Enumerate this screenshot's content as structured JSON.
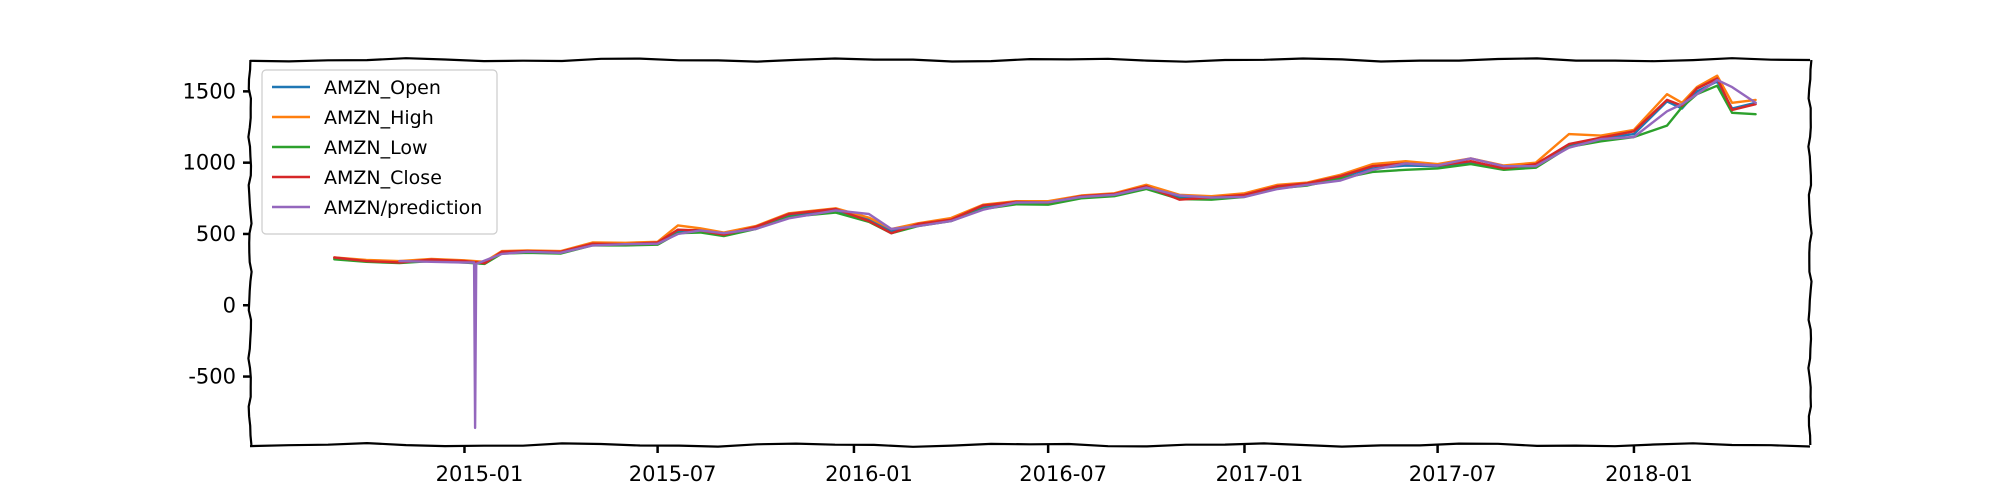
{
  "chart_data": {
    "type": "line",
    "title": "",
    "xlabel": "",
    "ylabel": "",
    "x_ticks": [
      "2015-01",
      "2015-07",
      "2016-01",
      "2016-07",
      "2017-01",
      "2017-07",
      "2018-01"
    ],
    "y_ticks": [
      "1500",
      "1000",
      "500",
      "0",
      "-500"
    ],
    "xlim": [
      "2014-06-14",
      "2018-06-15"
    ],
    "ylim": [
      -980,
      1720
    ],
    "grid": false,
    "legend_position": "top-left",
    "series": [
      {
        "name": "AMZN_Open",
        "color": "#1f77b4",
        "points": [
          [
            "2014-09-01",
            330
          ],
          [
            "2014-10-01",
            312
          ],
          [
            "2014-11-01",
            305
          ],
          [
            "2014-12-01",
            318
          ],
          [
            "2015-01-01",
            310
          ],
          [
            "2015-01-20",
            300
          ],
          [
            "2015-02-05",
            372
          ],
          [
            "2015-03-01",
            378
          ],
          [
            "2015-04-01",
            372
          ],
          [
            "2015-05-01",
            430
          ],
          [
            "2015-06-01",
            430
          ],
          [
            "2015-07-01",
            435
          ],
          [
            "2015-07-20",
            520
          ],
          [
            "2015-08-10",
            530
          ],
          [
            "2015-09-01",
            500
          ],
          [
            "2015-10-01",
            545
          ],
          [
            "2015-11-01",
            630
          ],
          [
            "2015-12-15",
            665
          ],
          [
            "2016-01-15",
            600
          ],
          [
            "2016-02-05",
            520
          ],
          [
            "2016-03-01",
            565
          ],
          [
            "2016-04-01",
            600
          ],
          [
            "2016-05-01",
            690
          ],
          [
            "2016-06-01",
            720
          ],
          [
            "2016-07-01",
            715
          ],
          [
            "2016-08-01",
            760
          ],
          [
            "2016-09-01",
            775
          ],
          [
            "2016-10-01",
            830
          ],
          [
            "2016-11-01",
            760
          ],
          [
            "2016-12-01",
            750
          ],
          [
            "2017-01-01",
            770
          ],
          [
            "2017-02-01",
            830
          ],
          [
            "2017-03-01",
            850
          ],
          [
            "2017-04-01",
            900
          ],
          [
            "2017-05-01",
            960
          ],
          [
            "2017-06-01",
            980
          ],
          [
            "2017-07-01",
            975
          ],
          [
            "2017-08-01",
            1000
          ],
          [
            "2017-09-01",
            965
          ],
          [
            "2017-10-01",
            980
          ],
          [
            "2017-11-01",
            1120
          ],
          [
            "2017-12-01",
            1170
          ],
          [
            "2018-01-01",
            1200
          ],
          [
            "2018-02-01",
            1430
          ],
          [
            "2018-02-15",
            1380
          ],
          [
            "2018-03-01",
            1500
          ],
          [
            "2018-03-20",
            1570
          ],
          [
            "2018-04-03",
            1380
          ],
          [
            "2018-04-25",
            1420
          ]
        ]
      },
      {
        "name": "AMZN_High",
        "color": "#ff7f0e",
        "points": [
          [
            "2014-09-01",
            335
          ],
          [
            "2014-10-01",
            318
          ],
          [
            "2014-11-01",
            310
          ],
          [
            "2014-12-01",
            325
          ],
          [
            "2015-01-01",
            315
          ],
          [
            "2015-01-20",
            305
          ],
          [
            "2015-02-05",
            380
          ],
          [
            "2015-03-01",
            385
          ],
          [
            "2015-04-01",
            380
          ],
          [
            "2015-05-01",
            440
          ],
          [
            "2015-06-01",
            438
          ],
          [
            "2015-07-01",
            445
          ],
          [
            "2015-07-20",
            560
          ],
          [
            "2015-08-10",
            540
          ],
          [
            "2015-09-01",
            510
          ],
          [
            "2015-10-01",
            555
          ],
          [
            "2015-11-01",
            645
          ],
          [
            "2015-12-15",
            680
          ],
          [
            "2016-01-15",
            615
          ],
          [
            "2016-02-05",
            535
          ],
          [
            "2016-03-01",
            575
          ],
          [
            "2016-04-01",
            612
          ],
          [
            "2016-05-01",
            705
          ],
          [
            "2016-06-01",
            730
          ],
          [
            "2016-07-01",
            730
          ],
          [
            "2016-08-01",
            770
          ],
          [
            "2016-09-01",
            785
          ],
          [
            "2016-10-01",
            845
          ],
          [
            "2016-11-01",
            775
          ],
          [
            "2016-12-01",
            765
          ],
          [
            "2017-01-01",
            785
          ],
          [
            "2017-02-01",
            845
          ],
          [
            "2017-03-01",
            860
          ],
          [
            "2017-04-01",
            915
          ],
          [
            "2017-05-01",
            990
          ],
          [
            "2017-06-01",
            1010
          ],
          [
            "2017-07-01",
            990
          ],
          [
            "2017-08-01",
            1030
          ],
          [
            "2017-09-01",
            980
          ],
          [
            "2017-10-01",
            1000
          ],
          [
            "2017-11-01",
            1200
          ],
          [
            "2017-12-01",
            1190
          ],
          [
            "2018-01-01",
            1230
          ],
          [
            "2018-02-01",
            1480
          ],
          [
            "2018-02-15",
            1420
          ],
          [
            "2018-03-01",
            1530
          ],
          [
            "2018-03-20",
            1610
          ],
          [
            "2018-04-03",
            1420
          ],
          [
            "2018-04-25",
            1440
          ]
        ]
      },
      {
        "name": "AMZN_Low",
        "color": "#2ca02c",
        "points": [
          [
            "2014-09-01",
            322
          ],
          [
            "2014-10-01",
            305
          ],
          [
            "2014-11-01",
            296
          ],
          [
            "2014-12-01",
            310
          ],
          [
            "2015-01-01",
            300
          ],
          [
            "2015-01-20",
            290
          ],
          [
            "2015-02-05",
            362
          ],
          [
            "2015-03-01",
            368
          ],
          [
            "2015-04-01",
            362
          ],
          [
            "2015-05-01",
            420
          ],
          [
            "2015-06-01",
            420
          ],
          [
            "2015-07-01",
            425
          ],
          [
            "2015-07-20",
            505
          ],
          [
            "2015-08-10",
            510
          ],
          [
            "2015-09-01",
            485
          ],
          [
            "2015-10-01",
            535
          ],
          [
            "2015-11-01",
            620
          ],
          [
            "2015-12-15",
            650
          ],
          [
            "2016-01-15",
            585
          ],
          [
            "2016-02-05",
            505
          ],
          [
            "2016-03-01",
            555
          ],
          [
            "2016-04-01",
            590
          ],
          [
            "2016-05-01",
            675
          ],
          [
            "2016-06-01",
            708
          ],
          [
            "2016-07-01",
            705
          ],
          [
            "2016-08-01",
            750
          ],
          [
            "2016-09-01",
            765
          ],
          [
            "2016-10-01",
            815
          ],
          [
            "2016-11-01",
            745
          ],
          [
            "2016-12-01",
            740
          ],
          [
            "2017-01-01",
            760
          ],
          [
            "2017-02-01",
            820
          ],
          [
            "2017-03-01",
            840
          ],
          [
            "2017-04-01",
            890
          ],
          [
            "2017-05-01",
            935
          ],
          [
            "2017-06-01",
            950
          ],
          [
            "2017-07-01",
            960
          ],
          [
            "2017-08-01",
            990
          ],
          [
            "2017-09-01",
            950
          ],
          [
            "2017-10-01",
            965
          ],
          [
            "2017-11-01",
            1110
          ],
          [
            "2017-12-01",
            1150
          ],
          [
            "2018-01-01",
            1180
          ],
          [
            "2018-02-01",
            1260
          ],
          [
            "2018-02-15",
            1390
          ],
          [
            "2018-03-01",
            1480
          ],
          [
            "2018-03-20",
            1540
          ],
          [
            "2018-04-03",
            1350
          ],
          [
            "2018-04-25",
            1340
          ]
        ]
      },
      {
        "name": "AMZN_Close",
        "color": "#d62728",
        "points": [
          [
            "2014-09-01",
            335
          ],
          [
            "2014-10-01",
            310
          ],
          [
            "2014-11-01",
            300
          ],
          [
            "2014-12-01",
            320
          ],
          [
            "2015-01-01",
            310
          ],
          [
            "2015-01-20",
            295
          ],
          [
            "2015-02-05",
            375
          ],
          [
            "2015-03-01",
            380
          ],
          [
            "2015-04-01",
            375
          ],
          [
            "2015-05-01",
            432
          ],
          [
            "2015-06-01",
            428
          ],
          [
            "2015-07-01",
            440
          ],
          [
            "2015-07-20",
            530
          ],
          [
            "2015-08-10",
            525
          ],
          [
            "2015-09-01",
            495
          ],
          [
            "2015-10-01",
            550
          ],
          [
            "2015-11-01",
            640
          ],
          [
            "2015-12-15",
            675
          ],
          [
            "2016-01-15",
            590
          ],
          [
            "2016-02-05",
            505
          ],
          [
            "2016-03-01",
            570
          ],
          [
            "2016-04-01",
            600
          ],
          [
            "2016-05-01",
            700
          ],
          [
            "2016-06-01",
            725
          ],
          [
            "2016-07-01",
            720
          ],
          [
            "2016-08-01",
            765
          ],
          [
            "2016-09-01",
            780
          ],
          [
            "2016-10-01",
            835
          ],
          [
            "2016-11-01",
            740
          ],
          [
            "2016-12-01",
            755
          ],
          [
            "2017-01-01",
            775
          ],
          [
            "2017-02-01",
            835
          ],
          [
            "2017-03-01",
            855
          ],
          [
            "2017-04-01",
            905
          ],
          [
            "2017-05-01",
            975
          ],
          [
            "2017-06-01",
            995
          ],
          [
            "2017-07-01",
            980
          ],
          [
            "2017-08-01",
            1010
          ],
          [
            "2017-09-01",
            960
          ],
          [
            "2017-10-01",
            990
          ],
          [
            "2017-11-01",
            1130
          ],
          [
            "2017-12-01",
            1175
          ],
          [
            "2018-01-01",
            1220
          ],
          [
            "2018-02-01",
            1440
          ],
          [
            "2018-02-15",
            1400
          ],
          [
            "2018-03-01",
            1520
          ],
          [
            "2018-03-20",
            1590
          ],
          [
            "2018-04-03",
            1370
          ],
          [
            "2018-04-25",
            1410
          ]
        ]
      },
      {
        "name": "AMZN/prediction",
        "color": "#9467bd",
        "points": [
          [
            "2014-11-01",
            310
          ],
          [
            "2014-12-01",
            305
          ],
          [
            "2015-01-01",
            300
          ],
          [
            "2015-01-10",
            300
          ],
          [
            "2015-01-11",
            -860
          ],
          [
            "2015-01-12",
            290
          ],
          [
            "2015-02-05",
            360
          ],
          [
            "2015-03-01",
            375
          ],
          [
            "2015-04-01",
            368
          ],
          [
            "2015-05-01",
            420
          ],
          [
            "2015-06-01",
            428
          ],
          [
            "2015-07-01",
            432
          ],
          [
            "2015-07-20",
            500
          ],
          [
            "2015-08-10",
            525
          ],
          [
            "2015-09-01",
            505
          ],
          [
            "2015-10-01",
            535
          ],
          [
            "2015-11-01",
            610
          ],
          [
            "2015-12-15",
            665
          ],
          [
            "2016-01-15",
            640
          ],
          [
            "2016-02-05",
            535
          ],
          [
            "2016-03-01",
            555
          ],
          [
            "2016-04-01",
            590
          ],
          [
            "2016-05-01",
            670
          ],
          [
            "2016-06-01",
            720
          ],
          [
            "2016-07-01",
            722
          ],
          [
            "2016-08-01",
            760
          ],
          [
            "2016-09-01",
            775
          ],
          [
            "2016-10-01",
            825
          ],
          [
            "2016-11-01",
            770
          ],
          [
            "2016-12-01",
            755
          ],
          [
            "2017-01-01",
            760
          ],
          [
            "2017-02-01",
            815
          ],
          [
            "2017-03-01",
            845
          ],
          [
            "2017-04-01",
            875
          ],
          [
            "2017-05-01",
            950
          ],
          [
            "2017-06-01",
            995
          ],
          [
            "2017-07-01",
            980
          ],
          [
            "2017-08-01",
            1030
          ],
          [
            "2017-09-01",
            975
          ],
          [
            "2017-10-01",
            975
          ],
          [
            "2017-11-01",
            1105
          ],
          [
            "2017-12-01",
            1165
          ],
          [
            "2018-01-01",
            1180
          ],
          [
            "2018-02-01",
            1360
          ],
          [
            "2018-02-15",
            1410
          ],
          [
            "2018-03-01",
            1480
          ],
          [
            "2018-03-20",
            1580
          ],
          [
            "2018-04-03",
            1530
          ],
          [
            "2018-04-25",
            1420
          ]
        ]
      }
    ]
  }
}
